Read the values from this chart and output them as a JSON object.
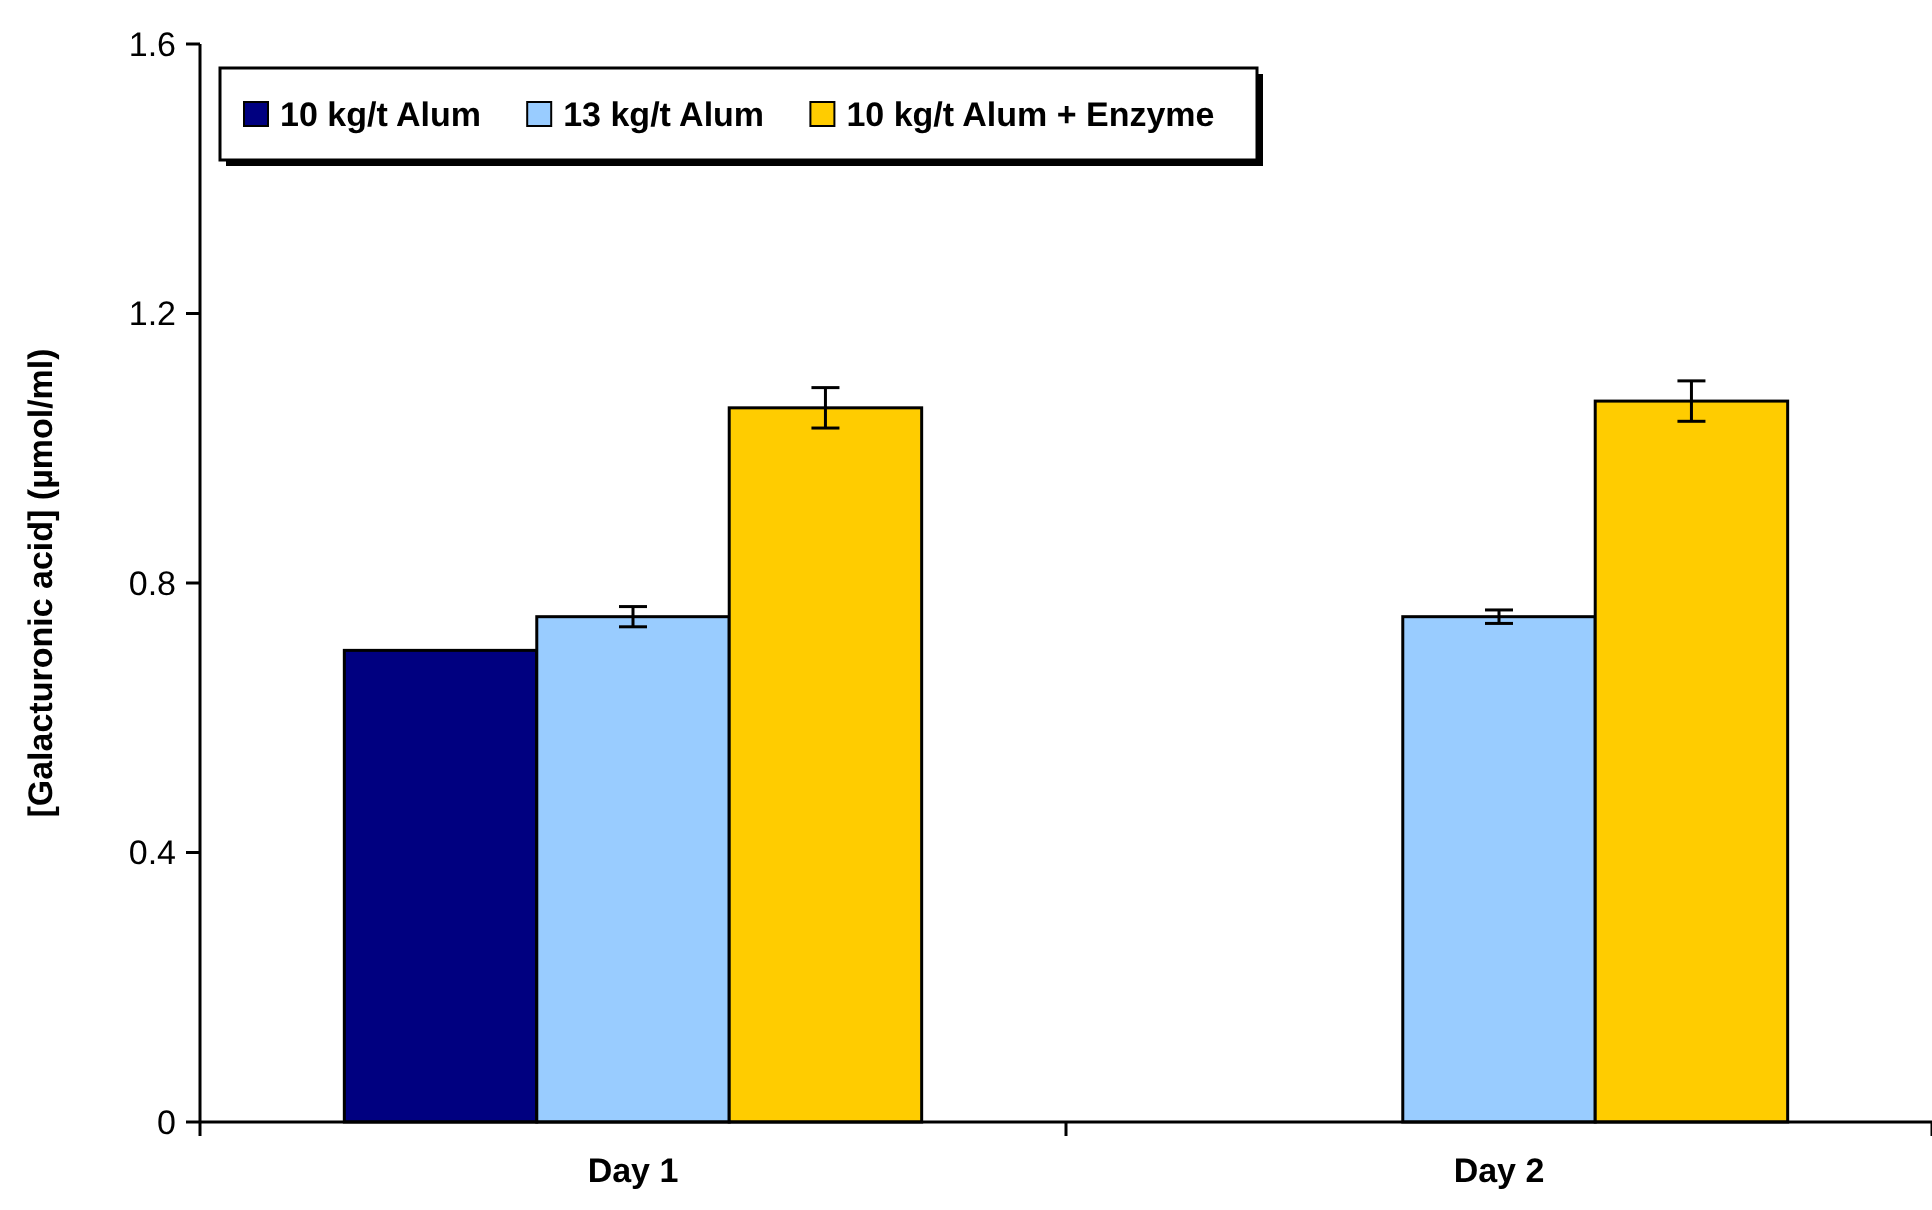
{
  "chart_data": {
    "type": "bar",
    "ylabel": "[Galacturonic acid] (µmol/ml)",
    "categories": [
      "Day 1",
      "Day 2"
    ],
    "series": [
      {
        "name": "10 kg/t Alum",
        "color": "#000080",
        "values": [
          0.7,
          null
        ]
      },
      {
        "name": "13 kg/t Alum",
        "color": "#99ccff",
        "values": [
          0.75,
          0.75
        ],
        "errors": [
          0.015,
          0.01
        ]
      },
      {
        "name": "10 kg/t Alum + Enzyme",
        "color": "#ffcc00",
        "values": [
          1.06,
          1.07
        ],
        "errors": [
          0.03,
          0.03
        ]
      }
    ],
    "ylim": [
      0,
      1.6
    ],
    "yticks": [
      0,
      0.4,
      0.8,
      1.2,
      1.6
    ],
    "grid": false,
    "legend": "top left"
  }
}
